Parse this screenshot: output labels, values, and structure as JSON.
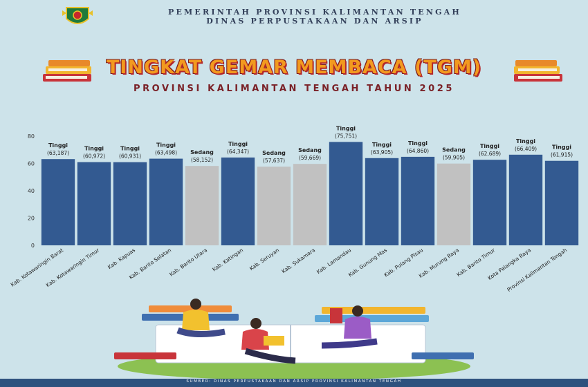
{
  "header": {
    "org_line1": "PEMERINTAH PROVINSI KALIMANTAN TENGAH",
    "org_line2": "DINAS PERPUSTAKAAN DAN ARSIP",
    "logo_icon": "provincial-emblem-icon"
  },
  "title": "TINGKAT GEMAR MEMBACA (TGM)",
  "subtitle": "PROVINSI KALIMANTAN TENGAH TAHUN 2025",
  "colors": {
    "background": "#cde3ea",
    "tinggi": "#335a91",
    "sedang": "#c1c1c1",
    "title_orange": "#f29a1f",
    "title_shadow": "#b3262a",
    "subtitle": "#7a2127",
    "footer": "#2e527e"
  },
  "chart_data": {
    "type": "bar",
    "ylim": [
      0,
      80
    ],
    "yticks": [
      0,
      20,
      40,
      60,
      80
    ],
    "grid": false,
    "categories": [
      "Kab. Kotawaringin Barat",
      "Kab. Kotawaringin Timur",
      "Kab. Kapuas",
      "Kab. Barito Selatan",
      "Kab. Barito Utara",
      "Kab. Katingan",
      "Kab. Seruyan",
      "Kab. Sukamara",
      "Kab. Lamandau",
      "Kab. Gunung Mas",
      "Kab. Pulang Pisau",
      "Kab. Murung Raya",
      "Kab. Barito Timur",
      "Kota Palangka Raya",
      "Provinsi Kalimantan Tengah"
    ],
    "values": [
      63.187,
      60.972,
      60.931,
      63.498,
      58.152,
      64.347,
      57.637,
      59.669,
      75.751,
      63.905,
      64.86,
      59.905,
      62.689,
      66.409,
      61.915
    ],
    "status": [
      "Tinggi",
      "Tinggi",
      "Tinggi",
      "Tinggi",
      "Sedang",
      "Tinggi",
      "Sedang",
      "Sedang",
      "Tinggi",
      "Tinggi",
      "Tinggi",
      "Sedang",
      "Tinggi",
      "Tinggi",
      "Tinggi"
    ],
    "value_labels": [
      "(63,187)",
      "(60,972)",
      "(60,931)",
      "(63,498)",
      "(58,152)",
      "(64,347)",
      "(57,637)",
      "(59,669)",
      "(75,751)",
      "(63,905)",
      "(64,860)",
      "(59,905)",
      "(62,689)",
      "(66,409)",
      "(61,915)"
    ]
  },
  "footer": {
    "source": "SUMBER: DINAS PERPUSTAKAAN DAN ARSIP PROVINSI KALIMANTAN TENGAH"
  }
}
